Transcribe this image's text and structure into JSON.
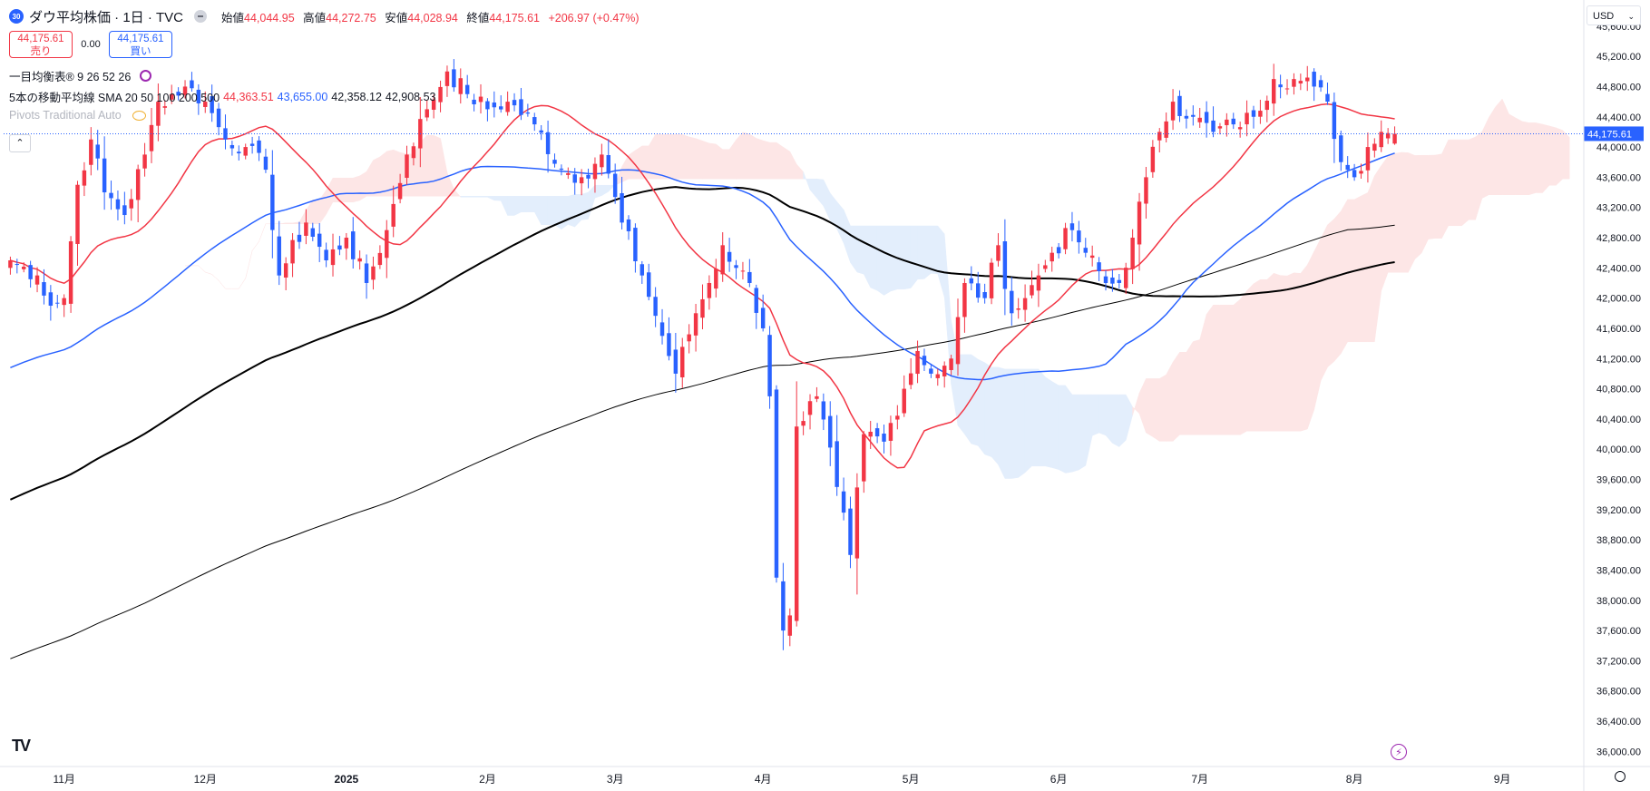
{
  "header": {
    "badge": "30",
    "symbol": "ダウ平均株価 · 1日 · TVC",
    "open_label": "始値",
    "open": "44,044.95",
    "high_label": "高値",
    "high": "44,272.75",
    "low_label": "安値",
    "low": "44,028.94",
    "close_label": "終値",
    "close": "44,175.61",
    "change": "+206.97 (+0.47%)"
  },
  "trade": {
    "sell_price": "44,175.61",
    "sell_label": "売り",
    "spread": "0.00",
    "buy_price": "44,175.61",
    "buy_label": "買い"
  },
  "indicators": {
    "ichimoku": "一目均衡表® 9 26 52 26",
    "ma_label": "5本の移動平均線 SMA 20 50 100 200 500",
    "ma20": "44,363.51",
    "ma50": "43,655.00",
    "ma100": "42,358.12",
    "ma200": "42,908.53",
    "pivots": "Pivots Traditional Auto"
  },
  "currency": "USD",
  "last_price_label": "44,175.61",
  "colors": {
    "up": "#f23645",
    "down": "#2962ff",
    "ma20": "#f23645",
    "ma50": "#2962ff",
    "ma100": "#000000",
    "ma200": "#000000",
    "cloud_bull": "#fde6e6",
    "cloud_bear": "#e3eefc"
  },
  "chart_data": {
    "type": "candlestick",
    "y_ticks": [
      "45,600.00",
      "45,200.00",
      "44,800.00",
      "44,400.00",
      "44,000.00",
      "43,600.00",
      "43,200.00",
      "42,800.00",
      "42,400.00",
      "42,000.00",
      "41,600.00",
      "41,200.00",
      "40,800.00",
      "40,400.00",
      "40,000.00",
      "39,600.00",
      "39,200.00",
      "38,800.00",
      "38,400.00",
      "38,000.00",
      "37,600.00",
      "37,200.00",
      "36,800.00",
      "36,400.00",
      "36,000.00"
    ],
    "ylim": [
      35800,
      45850
    ],
    "x_ticks": [
      {
        "label": "11月",
        "i": 8
      },
      {
        "label": "12月",
        "i": 29
      },
      {
        "label": "2025",
        "i": 50
      },
      {
        "label": "2月",
        "i": 71
      },
      {
        "label": "3月",
        "i": 90
      },
      {
        "label": "4月",
        "i": 112
      },
      {
        "label": "5月",
        "i": 134
      },
      {
        "label": "6月",
        "i": 156
      },
      {
        "label": "7月",
        "i": 177
      },
      {
        "label": "8月",
        "i": 200
      },
      {
        "label": "9月",
        "i": 222
      }
    ],
    "candles_x_range": [
      0,
      206
    ],
    "x_axis_range": [
      -1,
      234
    ],
    "last_price": 44175.61,
    "anchors": [
      [
        0,
        42500
      ],
      [
        4,
        42300
      ],
      [
        6,
        41900
      ],
      [
        8,
        42000
      ],
      [
        10,
        43500
      ],
      [
        12,
        44100
      ],
      [
        14,
        43400
      ],
      [
        17,
        43100
      ],
      [
        20,
        43900
      ],
      [
        22,
        44600
      ],
      [
        26,
        44800
      ],
      [
        29,
        44600
      ],
      [
        32,
        44100
      ],
      [
        35,
        44000
      ],
      [
        38,
        43700
      ],
      [
        40,
        42300
      ],
      [
        44,
        43000
      ],
      [
        47,
        42500
      ],
      [
        50,
        42800
      ],
      [
        53,
        42200
      ],
      [
        56,
        42900
      ],
      [
        59,
        43900
      ],
      [
        62,
        44500
      ],
      [
        65,
        45000
      ],
      [
        68,
        44700
      ],
      [
        71,
        44500
      ],
      [
        74,
        44600
      ],
      [
        78,
        44300
      ],
      [
        82,
        43700
      ],
      [
        85,
        43600
      ],
      [
        88,
        43900
      ],
      [
        91,
        43000
      ],
      [
        94,
        42300
      ],
      [
        97,
        41500
      ],
      [
        99,
        41000
      ],
      [
        102,
        41800
      ],
      [
        104,
        42200
      ],
      [
        106,
        42700
      ],
      [
        108,
        42400
      ],
      [
        110,
        42200
      ],
      [
        112,
        41600
      ],
      [
        113,
        40700
      ],
      [
        114,
        38300
      ],
      [
        115,
        37600
      ],
      [
        116,
        37800
      ],
      [
        117,
        40300
      ],
      [
        120,
        40700
      ],
      [
        123,
        39500
      ],
      [
        125,
        38600
      ],
      [
        127,
        40200
      ],
      [
        130,
        40100
      ],
      [
        133,
        40800
      ],
      [
        135,
        41300
      ],
      [
        137,
        41000
      ],
      [
        140,
        41200
      ],
      [
        142,
        42200
      ],
      [
        145,
        42000
      ],
      [
        147,
        42700
      ],
      [
        149,
        41800
      ],
      [
        151,
        42000
      ],
      [
        153,
        42300
      ],
      [
        155,
        42600
      ],
      [
        158,
        42900
      ],
      [
        160,
        42600
      ],
      [
        163,
        42200
      ],
      [
        165,
        42200
      ],
      [
        167,
        42800
      ],
      [
        169,
        43600
      ],
      [
        171,
        44200
      ],
      [
        173,
        44600
      ],
      [
        176,
        44400
      ],
      [
        179,
        44200
      ],
      [
        182,
        44300
      ],
      [
        185,
        44400
      ],
      [
        188,
        44900
      ],
      [
        191,
        44900
      ],
      [
        194,
        44800
      ],
      [
        196,
        44600
      ],
      [
        198,
        43800
      ],
      [
        200,
        43600
      ],
      [
        202,
        44000
      ],
      [
        204,
        44200
      ],
      [
        206,
        44175
      ]
    ],
    "series": [
      {
        "type": "sma",
        "period": 20
      },
      {
        "type": "sma",
        "period": 50
      },
      {
        "type": "sma",
        "period": 100
      },
      {
        "type": "sma",
        "period": 200
      },
      {
        "type": "ichimoku_cloud",
        "conversion": 9,
        "base": 26,
        "span_b": 52,
        "displacement": 26
      }
    ]
  }
}
